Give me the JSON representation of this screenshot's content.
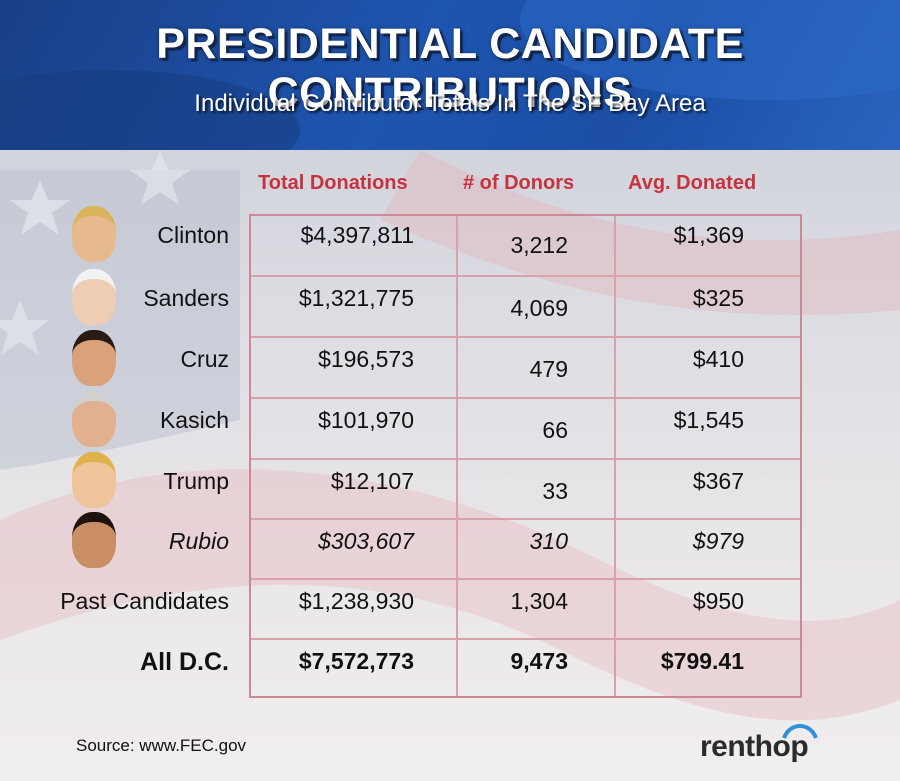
{
  "title": "PRESIDENTIAL CANDIDATE CONTRIBUTIONS",
  "subtitle": "Individual Contributor Totals In The SF Bay Area",
  "colors": {
    "header_blue": "#1e55b0",
    "accent_red": "#c8323e",
    "grid_line": "#d7a2aa"
  },
  "chart_data": {
    "type": "table",
    "columns": [
      "Total Donations",
      "# of Donors",
      "Avg. Donated"
    ],
    "rows": [
      {
        "name": "Clinton",
        "total": "$4,397,811",
        "donors": "3,212",
        "avg": "$1,369",
        "style": "normal",
        "icon": "clinton-portrait"
      },
      {
        "name": "Sanders",
        "total": "$1,321,775",
        "donors": "4,069",
        "avg": "$325",
        "style": "normal",
        "icon": "sanders-portrait"
      },
      {
        "name": "Cruz",
        "total": "$196,573",
        "donors": "479",
        "avg": "$410",
        "style": "normal",
        "icon": "cruz-portrait"
      },
      {
        "name": "Kasich",
        "total": "$101,970",
        "donors": "66",
        "avg": "$1,545",
        "style": "normal",
        "icon": "kasich-portrait"
      },
      {
        "name": "Trump",
        "total": "$12,107",
        "donors": "33",
        "avg": "$367",
        "style": "normal",
        "icon": "trump-portrait"
      },
      {
        "name": "Rubio",
        "total": "$303,607",
        "donors": "310",
        "avg": "$979",
        "style": "italic",
        "icon": "rubio-portrait"
      },
      {
        "name": "Past Candidates",
        "total": "$1,238,930",
        "donors": "1,304",
        "avg": "$950",
        "style": "normal",
        "icon": ""
      },
      {
        "name": "All D.C.",
        "total": "$7,572,773",
        "donors": "9,473",
        "avg": "$799.41",
        "style": "bold",
        "icon": ""
      }
    ]
  },
  "footer": {
    "source": "Source: www.FEC.gov",
    "brand": "renthop"
  }
}
